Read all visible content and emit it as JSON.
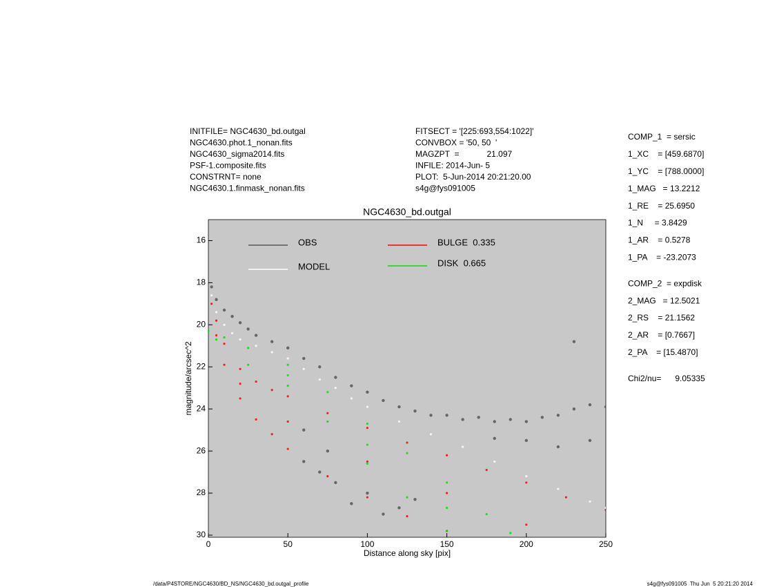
{
  "chart_data": {
    "type": "scatter",
    "title": "NGC4630_bd.outgal",
    "x_label": "Distance along sky [pix]",
    "y_label": "magnitude/arcsec^2",
    "header_left": [
      "INITFILE= NGC4630_bd.outgal",
      "NGC4630.phot.1_nonan.fits",
      "NGC4630_sigma2014.fits",
      "PSF-1.composite.fits",
      "CONSTRNT= none",
      "NGC4630.1.finmask_nonan.fits"
    ],
    "header_middle": [
      "FITSECT = '[225:693,554:1022]'",
      "CONVBOX = '50, 50  '",
      "MAGZPT  =            21.097",
      "INFILE: 2014-Jun- 5",
      "PLOT:  5-Jun-2014 20:21:20.00",
      "s4g@fys091005"
    ],
    "parameters": [
      [
        "COMP_1  = sersic",
        "1_XC    = [459.6870]",
        "1_YC    = [788.0000]",
        "1_MAG   = 13.2212",
        "1_RE    = 25.6950",
        "1_N     = 3.8429",
        "1_AR    = 0.5278",
        "1_PA    = -23.2073"
      ],
      [
        "COMP_2  = expdisk",
        "2_MAG   = 12.5021",
        "2_RS    = 21.1562",
        "2_AR    = [0.7667]",
        "2_PA    = [15.4870]"
      ],
      [
        "Chi2/nu=      9.05335"
      ]
    ],
    "footer_left": "/data/P4STORE/NGC4630/BD_NS/NGC4630_bd.outgal_profile",
    "footer_right": "s4g@fys091005  Thu Jun  5 20:21:20 2014",
    "xlim": [
      0,
      250
    ],
    "xticks": [
      0,
      50,
      100,
      150,
      200,
      250
    ],
    "ylim": [
      30.1,
      15
    ],
    "yticks": [
      16,
      18,
      20,
      22,
      24,
      26,
      28,
      30
    ],
    "background": "#c8c8c8",
    "series": [
      {
        "name": "OBS",
        "color": "#555555",
        "x": [
          2,
          5,
          10,
          15,
          20,
          25,
          30,
          40,
          50,
          60,
          70,
          80,
          90,
          100,
          110,
          120,
          130,
          140,
          150,
          160,
          170,
          180,
          190,
          200,
          210,
          220,
          230,
          240,
          250,
          60,
          70,
          80,
          90,
          100,
          110,
          120,
          130,
          60,
          75,
          230,
          200,
          220,
          240,
          180
        ],
        "values": [
          18.2,
          18.8,
          19.3,
          19.6,
          19.9,
          20.2,
          20.5,
          20.8,
          21.1,
          21.6,
          22.0,
          22.5,
          22.9,
          23.2,
          23.6,
          23.9,
          24.1,
          24.3,
          24.3,
          24.5,
          24.4,
          24.6,
          24.5,
          24.6,
          24.4,
          24.3,
          24.0,
          23.8,
          23.9,
          26.5,
          27.0,
          27.5,
          28.5,
          28.0,
          29.0,
          28.7,
          28.3,
          25.0,
          26.0,
          20.8,
          25.5,
          25.8,
          25.5,
          25.4
        ]
      },
      {
        "name": "MODEL",
        "color": "#ffffff",
        "x": [
          2,
          5,
          10,
          15,
          20,
          30,
          40,
          50,
          60,
          70,
          80,
          90,
          100,
          120,
          140,
          160,
          180,
          200,
          220,
          240,
          250
        ],
        "values": [
          18.6,
          19.4,
          20.0,
          20.4,
          20.7,
          21.0,
          21.3,
          21.6,
          22.1,
          22.6,
          23.0,
          23.5,
          23.9,
          24.6,
          25.2,
          25.8,
          26.5,
          27.2,
          27.8,
          28.4,
          28.7
        ]
      },
      {
        "name": "BULGE  0.335",
        "color": "#ff0000",
        "x": [
          2,
          5,
          10,
          20,
          30,
          40,
          50,
          75,
          100,
          125,
          150,
          175,
          200,
          225,
          250,
          5,
          10,
          20,
          30,
          40,
          50,
          75,
          100,
          125,
          150,
          20,
          50,
          100,
          150,
          200
        ],
        "values": [
          19.0,
          19.8,
          20.9,
          22.1,
          22.7,
          23.1,
          23.4,
          24.2,
          24.9,
          25.6,
          26.2,
          26.9,
          27.5,
          28.2,
          28.8,
          20.5,
          21.9,
          23.5,
          24.5,
          25.2,
          25.9,
          27.2,
          28.2,
          29.1,
          29.8,
          22.8,
          24.6,
          26.5,
          28.0,
          29.5
        ]
      },
      {
        "name": "DISK  0.665",
        "color": "#00e000",
        "x": [
          0,
          10,
          25,
          50,
          75,
          100,
          125,
          150,
          175,
          190,
          5,
          25,
          50,
          75,
          100,
          125,
          150,
          50,
          100,
          150
        ],
        "values": [
          20.3,
          20.6,
          21.1,
          21.9,
          23.2,
          24.7,
          26.1,
          27.5,
          29.0,
          29.9,
          20.7,
          21.9,
          22.9,
          24.6,
          26.6,
          28.2,
          29.8,
          22.4,
          25.7,
          28.7
        ]
      }
    ]
  }
}
